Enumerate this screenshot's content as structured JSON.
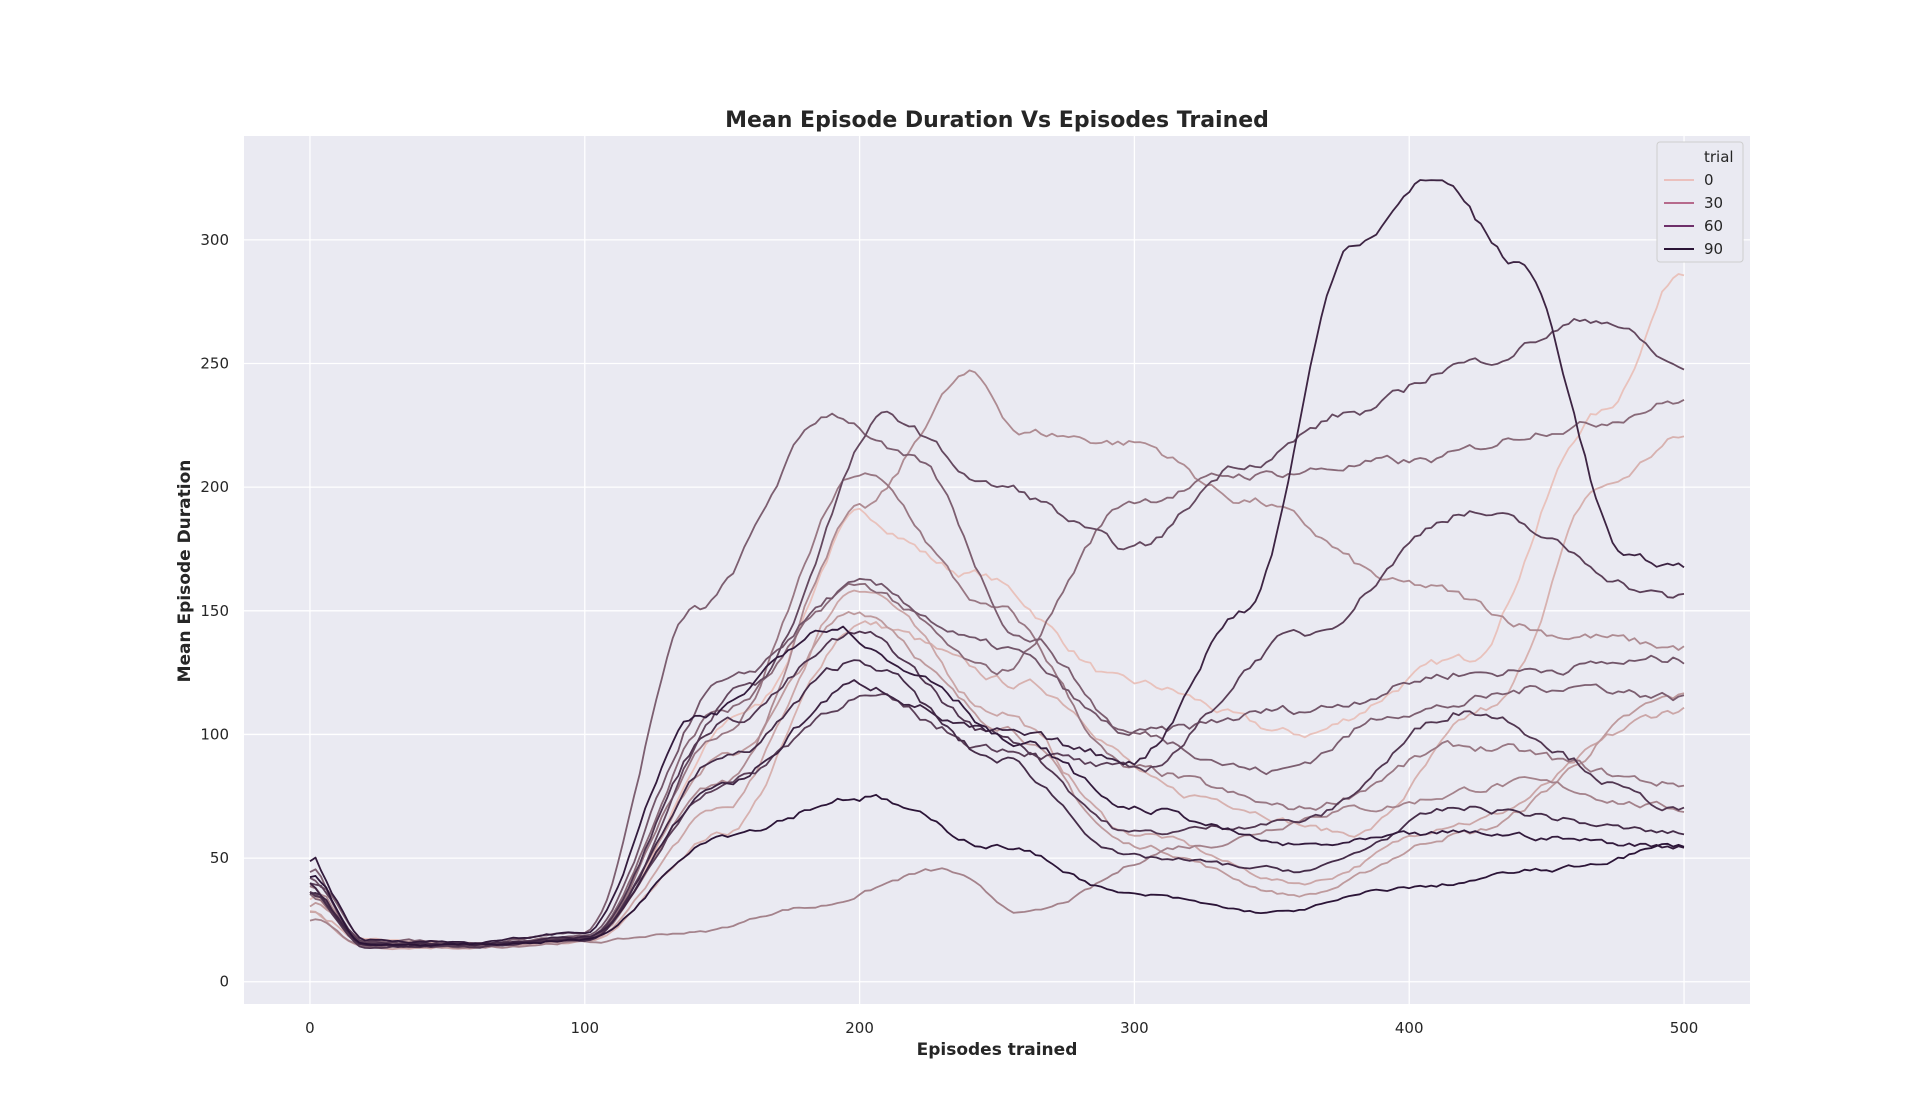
{
  "chart_data": {
    "type": "line",
    "title": "Mean Episode Duration Vs Episodes Trained",
    "xlabel": "Episodes trained",
    "ylabel": "Mean Episode Duration",
    "xlim": [
      -24,
      524
    ],
    "ylim": [
      -9,
      342
    ],
    "xticks": [
      0,
      100,
      200,
      300,
      400,
      500
    ],
    "yticks": [
      0,
      50,
      100,
      150,
      200,
      250,
      300
    ],
    "grid": true,
    "background_color": "#eaeaf2",
    "grid_color": "#ffffff",
    "legend": {
      "title": "trial",
      "placement": "top-right",
      "entries": [
        {
          "label": "0",
          "color": "#ebc0bd"
        },
        {
          "label": "30",
          "color": "#b66a8c"
        },
        {
          "label": "60",
          "color": "#6e2f6a"
        },
        {
          "label": "90",
          "color": "#2b1437"
        }
      ]
    },
    "color_range": [
      "#efc7c0",
      "#2b1437"
    ],
    "n_trials": 100,
    "episodes": [
      0,
      500
    ],
    "series": [
      {
        "trial": 3,
        "x": [
          0,
          20,
          60,
          100,
          160,
          200,
          240,
          300,
          360,
          420,
          470,
          500
        ],
        "y": [
          35,
          17,
          15,
          17,
          110,
          188,
          165,
          120,
          100,
          130,
          230,
          288
        ]
      },
      {
        "trial": 12,
        "x": [
          0,
          20,
          60,
          100,
          150,
          200,
          260,
          320,
          380,
          430,
          470,
          500
        ],
        "y": [
          30,
          15,
          14,
          16,
          60,
          145,
          120,
          75,
          60,
          110,
          200,
          220
        ]
      },
      {
        "trial": 18,
        "x": [
          0,
          20,
          60,
          100,
          150,
          200,
          250,
          300,
          360,
          420,
          500
        ],
        "y": [
          28,
          14,
          14,
          16,
          70,
          160,
          110,
          60,
          40,
          65,
          110
        ]
      },
      {
        "trial": 25,
        "x": [
          0,
          20,
          60,
          100,
          150,
          200,
          250,
          300,
          360,
          420,
          500
        ],
        "y": [
          32,
          16,
          15,
          18,
          90,
          150,
          105,
          55,
          35,
          60,
          115
        ]
      },
      {
        "trial": 33,
        "x": [
          0,
          20,
          60,
          100,
          150,
          200,
          240,
          260,
          300,
          340,
          400,
          460,
          500
        ],
        "y": [
          40,
          15,
          14,
          17,
          80,
          190,
          245,
          222,
          218,
          195,
          160,
          140,
          135
        ]
      },
      {
        "trial": 38,
        "x": [
          0,
          20,
          60,
          100,
          140,
          180,
          230,
          260,
          320,
          380,
          440,
          500
        ],
        "y": [
          25,
          14,
          14,
          16,
          20,
          30,
          45,
          28,
          55,
          70,
          80,
          70
        ]
      },
      {
        "trial": 44,
        "x": [
          0,
          20,
          60,
          100,
          150,
          200,
          250,
          300,
          360,
          420,
          500
        ],
        "y": [
          38,
          16,
          15,
          17,
          100,
          205,
          150,
          85,
          70,
          95,
          80
        ]
      },
      {
        "trial": 52,
        "x": [
          0,
          20,
          60,
          100,
          150,
          200,
          250,
          300,
          340,
          400,
          460,
          500
        ],
        "y": [
          35,
          15,
          15,
          18,
          110,
          160,
          125,
          195,
          205,
          210,
          225,
          235
        ]
      },
      {
        "trial": 58,
        "x": [
          0,
          20,
          60,
          100,
          140,
          190,
          220,
          260,
          300,
          350,
          400,
          460,
          500
        ],
        "y": [
          45,
          17,
          16,
          20,
          150,
          230,
          210,
          140,
          100,
          85,
          110,
          120,
          115
        ]
      },
      {
        "trial": 63,
        "x": [
          0,
          20,
          60,
          100,
          150,
          200,
          250,
          300,
          360,
          420,
          500
        ],
        "y": [
          42,
          15,
          15,
          18,
          120,
          160,
          135,
          100,
          110,
          125,
          130
        ]
      },
      {
        "trial": 70,
        "x": [
          0,
          20,
          60,
          100,
          160,
          210,
          250,
          300,
          340,
          380,
          420,
          470,
          500
        ],
        "y": [
          38,
          16,
          15,
          17,
          120,
          228,
          200,
          175,
          210,
          230,
          250,
          268,
          248
        ]
      },
      {
        "trial": 75,
        "x": [
          0,
          20,
          60,
          100,
          150,
          200,
          250,
          300,
          360,
          420,
          500
        ],
        "y": [
          40,
          16,
          15,
          18,
          80,
          115,
          95,
          85,
          140,
          190,
          155
        ]
      },
      {
        "trial": 80,
        "x": [
          0,
          20,
          60,
          100,
          150,
          200,
          250,
          300,
          360,
          420,
          500
        ],
        "y": [
          36,
          14,
          14,
          18,
          105,
          140,
          100,
          60,
          65,
          110,
          70
        ]
      },
      {
        "trial": 86,
        "x": [
          0,
          20,
          60,
          100,
          150,
          200,
          250,
          300,
          360,
          420,
          500
        ],
        "y": [
          34,
          15,
          15,
          17,
          90,
          130,
          90,
          50,
          45,
          70,
          60
        ]
      },
      {
        "trial": 90,
        "x": [
          0,
          20,
          60,
          100,
          150,
          200,
          250,
          300,
          340,
          380,
          410,
          440,
          480,
          500
        ],
        "y": [
          38,
          15,
          15,
          18,
          80,
          120,
          100,
          90,
          150,
          300,
          325,
          290,
          170,
          168
        ]
      },
      {
        "trial": 95,
        "x": [
          0,
          20,
          60,
          100,
          140,
          190,
          220,
          260,
          300,
          360,
          420,
          500
        ],
        "y": [
          50,
          17,
          16,
          20,
          105,
          145,
          125,
          95,
          70,
          55,
          60,
          55
        ]
      },
      {
        "trial": 99,
        "x": [
          0,
          20,
          60,
          100,
          150,
          200,
          250,
          300,
          350,
          400,
          450,
          500
        ],
        "y": [
          44,
          15,
          15,
          17,
          60,
          75,
          55,
          35,
          28,
          38,
          45,
          55
        ]
      }
    ]
  }
}
